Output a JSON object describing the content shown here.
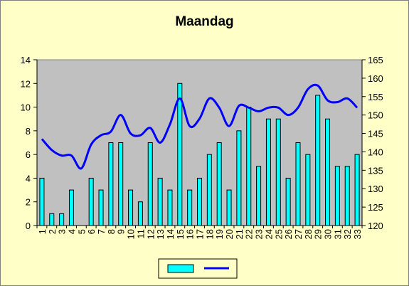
{
  "chart_data": {
    "type": "bar",
    "title": "Maandag",
    "categories": [
      "1",
      "2",
      "3",
      "4",
      "5",
      "6",
      "7",
      "8",
      "9",
      "10",
      "11",
      "12",
      "13",
      "14",
      "15",
      "16",
      "17",
      "18",
      "19",
      "20",
      "21",
      "22",
      "23",
      "24",
      "25",
      "26",
      "27",
      "28",
      "29",
      "30",
      "31",
      "32",
      "33"
    ],
    "series": [
      {
        "type": "bar",
        "axis": "left",
        "values": [
          4,
          1,
          1,
          3,
          0,
          4,
          3,
          7,
          7,
          3,
          2,
          7,
          4,
          3,
          12,
          3,
          4,
          6,
          7,
          3,
          8,
          10,
          5,
          9,
          9,
          4,
          7,
          6,
          11,
          9,
          5,
          5,
          6
        ]
      },
      {
        "type": "line",
        "axis": "right",
        "values": [
          143.5,
          140.5,
          139,
          139,
          135.5,
          142,
          144.5,
          145.5,
          150,
          145,
          144.5,
          146.5,
          142.5,
          147.5,
          154.5,
          147,
          149,
          154.5,
          152,
          147,
          152.5,
          152,
          151,
          152,
          152,
          150,
          152,
          157,
          158,
          154,
          153.5,
          154.5,
          152
        ]
      }
    ],
    "ylim_left": [
      0,
      14
    ],
    "ylim_right": [
      120,
      165
    ],
    "yticks_left": [
      0,
      2,
      4,
      6,
      8,
      10,
      12,
      14
    ],
    "yticks_right": [
      120,
      125,
      130,
      135,
      140,
      145,
      150,
      155,
      160,
      165
    ],
    "grid": false,
    "legend": "bottom-center",
    "colors": {
      "bar": "#00ffff",
      "line": "#0000ff",
      "plot_background": "#c0c0c0",
      "chart_background": "#ffffc8"
    }
  }
}
